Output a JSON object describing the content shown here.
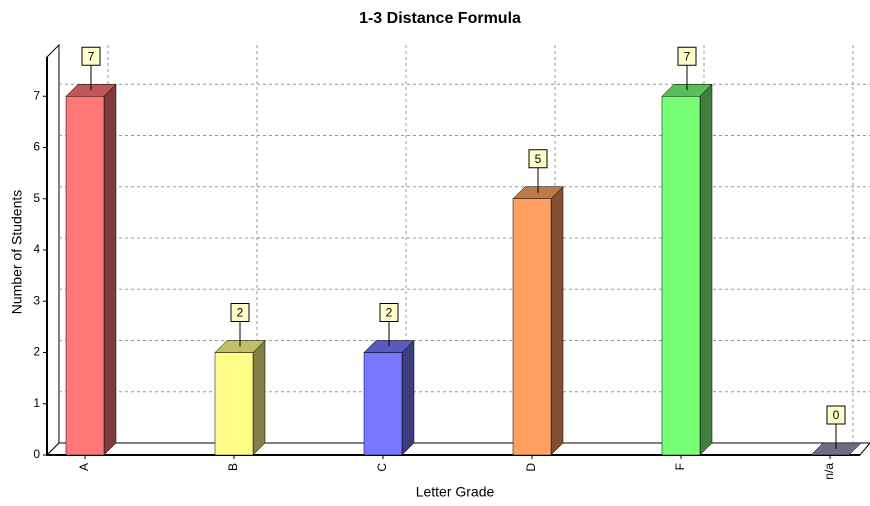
{
  "chart_data": {
    "type": "bar3d",
    "title": "1-3 Distance Formula",
    "x_label": "Letter Grade",
    "y_label": "Number of Students",
    "categories": [
      "A",
      "B",
      "C",
      "D",
      "F",
      "n/a"
    ],
    "values": [
      7,
      2,
      2,
      5,
      7,
      0
    ],
    "colors": [
      "#ff7777",
      "#ffff88",
      "#7777ff",
      "#ffa060",
      "#77ff77",
      "#9090b0"
    ],
    "ylim": [
      0,
      8
    ],
    "yticks": [
      0,
      1,
      2,
      3,
      4,
      5,
      6,
      7
    ],
    "grid": true
  }
}
